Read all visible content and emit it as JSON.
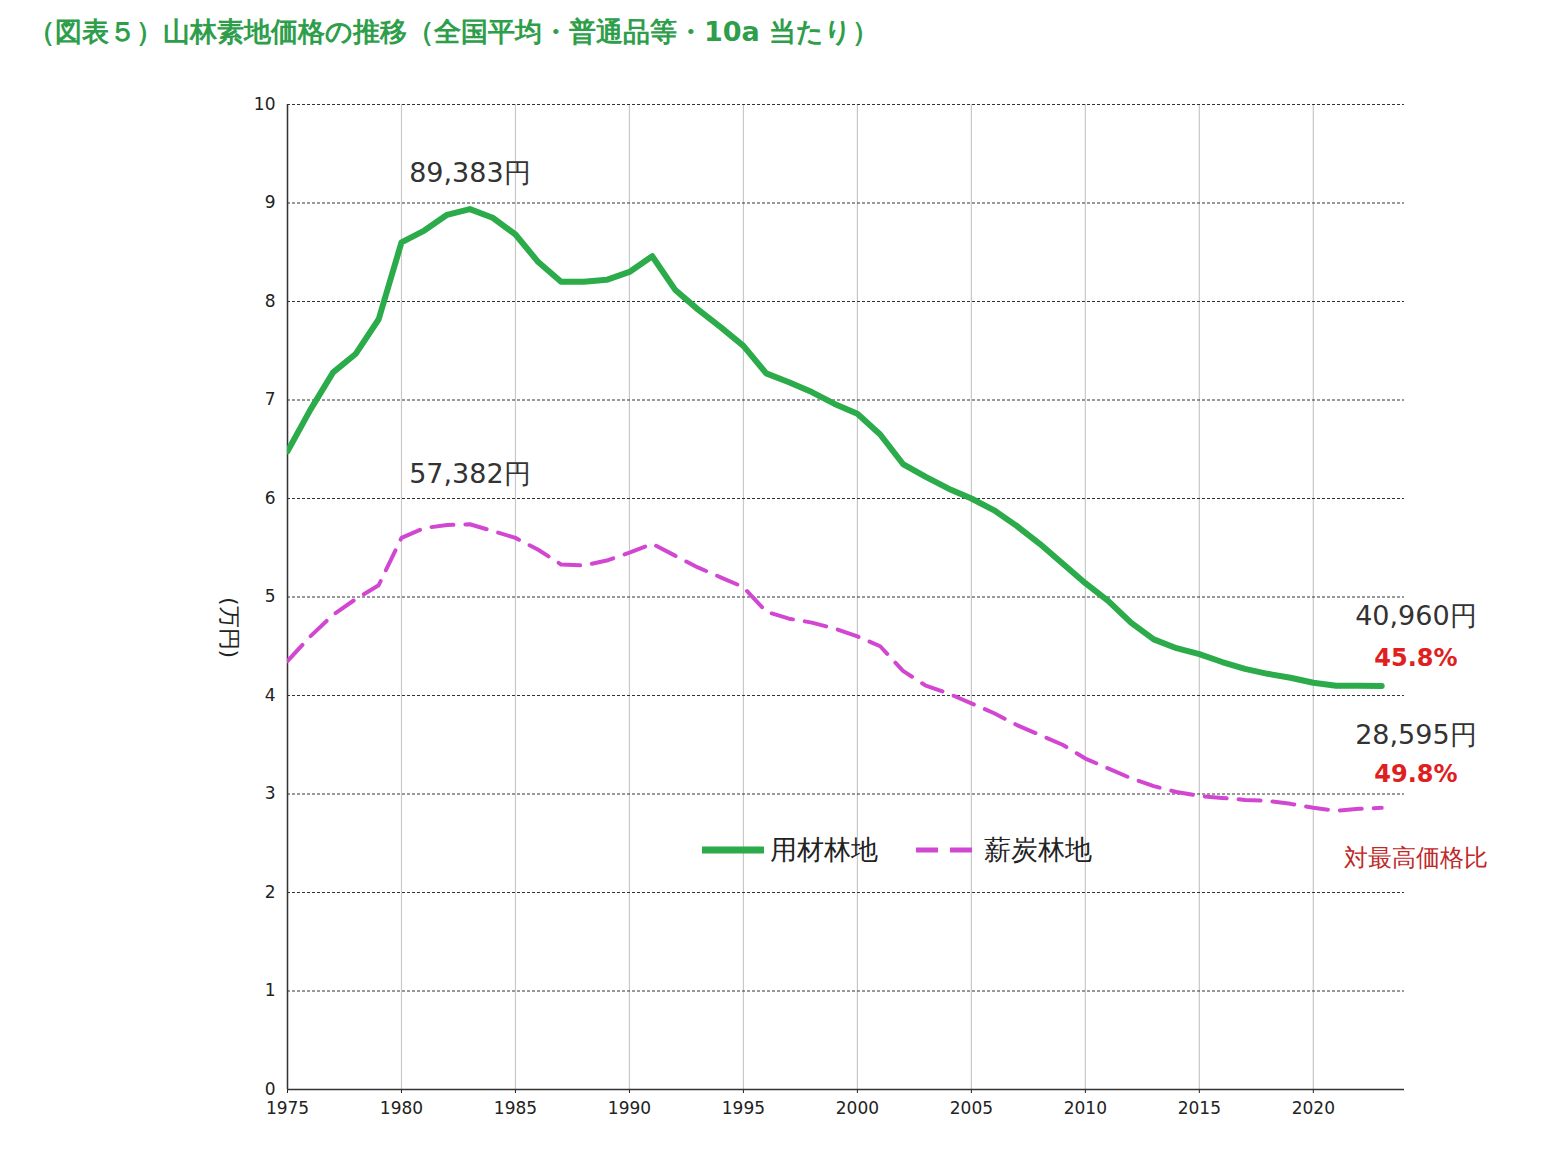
{
  "chart_data": {
    "type": "line",
    "title": "（図表５）山林素地価格の推移（全国平均・普通品等・10a 当たり）",
    "y_label": "(万円)",
    "x": [
      1975,
      1976,
      1977,
      1978,
      1979,
      1980,
      1981,
      1982,
      1983,
      1984,
      1985,
      1986,
      1987,
      1988,
      1989,
      1990,
      1991,
      1992,
      1993,
      1994,
      1995,
      1996,
      1997,
      1998,
      1999,
      2000,
      2001,
      2002,
      2003,
      2004,
      2005,
      2006,
      2007,
      2008,
      2009,
      2010,
      2011,
      2012,
      2013,
      2014,
      2015,
      2016,
      2017,
      2018,
      2019,
      2020,
      2021,
      2022,
      2023
    ],
    "series": [
      {
        "name": "用材林地",
        "color": "#2bab4a",
        "line_style": "solid",
        "values": [
          6.48,
          6.9,
          7.28,
          7.47,
          7.82,
          8.6,
          8.72,
          8.88,
          8.9383,
          8.85,
          8.68,
          8.4,
          8.2,
          8.2,
          8.22,
          8.3,
          8.46,
          8.12,
          7.92,
          7.74,
          7.55,
          7.27,
          7.18,
          7.08,
          6.96,
          6.86,
          6.65,
          6.35,
          6.22,
          6.1,
          6.0,
          5.88,
          5.72,
          5.54,
          5.34,
          5.14,
          4.96,
          4.74,
          4.57,
          4.48,
          4.42,
          4.34,
          4.27,
          4.22,
          4.18,
          4.13,
          4.1,
          4.1,
          4.096
        ]
      },
      {
        "name": "薪炭林地",
        "color": "#d247d2",
        "line_style": "dashed",
        "values": [
          4.35,
          4.6,
          4.82,
          4.98,
          5.12,
          5.6,
          5.7,
          5.73,
          5.7382,
          5.67,
          5.6,
          5.48,
          5.33,
          5.32,
          5.37,
          5.45,
          5.54,
          5.42,
          5.3,
          5.2,
          5.1,
          4.85,
          4.78,
          4.74,
          4.68,
          4.6,
          4.5,
          4.25,
          4.1,
          4.02,
          3.92,
          3.82,
          3.7,
          3.6,
          3.5,
          3.36,
          3.26,
          3.16,
          3.08,
          3.02,
          2.98,
          2.96,
          2.94,
          2.93,
          2.9,
          2.86,
          2.83,
          2.85,
          2.8595
        ]
      }
    ],
    "annotations": [
      {
        "text": "89,383円",
        "x": 1983,
        "y": 9.3,
        "color": "#333333"
      },
      {
        "text": "57,382円",
        "x": 1983,
        "y": 6.25,
        "color": "#333333"
      },
      {
        "text": "40,960円",
        "x": 2024.5,
        "y": 4.8,
        "color": "#333333"
      },
      {
        "text": "45.8%",
        "x": 2024.5,
        "y": 4.38,
        "color": "#e0201e"
      },
      {
        "text": "28,595円",
        "x": 2024.5,
        "y": 3.6,
        "color": "#333333"
      },
      {
        "text": "49.8%",
        "x": 2024.5,
        "y": 3.2,
        "color": "#e0201e"
      },
      {
        "text": "対最高価格比",
        "x": 2024.5,
        "y": 2.35,
        "color": "#c0282a"
      }
    ],
    "xlim": [
      1975,
      2024
    ],
    "xticks": [
      1975,
      1980,
      1985,
      1990,
      1995,
      2000,
      2005,
      2010,
      2015,
      2020
    ],
    "ylim": [
      0,
      10
    ],
    "yticks": [
      0,
      1,
      2,
      3,
      4,
      5,
      6,
      7,
      8,
      9,
      10
    ],
    "grid": true,
    "legend": "center"
  }
}
